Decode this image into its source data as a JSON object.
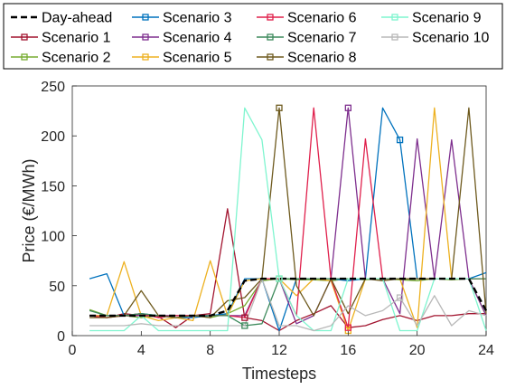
{
  "chart_data": {
    "type": "line",
    "xlabel": "Timesteps",
    "ylabel": "Price (€/MWh)",
    "xlim": [
      0,
      24
    ],
    "ylim": [
      0,
      250
    ],
    "xticks": [
      0,
      4,
      8,
      12,
      16,
      20,
      24
    ],
    "yticks": [
      0,
      50,
      100,
      150,
      200,
      250
    ],
    "grid": false,
    "legend": {
      "placement": "top",
      "columns": 4
    },
    "x": [
      1,
      2,
      3,
      4,
      5,
      6,
      7,
      8,
      9,
      10,
      11,
      12,
      13,
      14,
      15,
      16,
      17,
      18,
      19,
      20,
      21,
      22,
      23,
      24
    ],
    "series": [
      {
        "name": "Day-ahead",
        "color": "#000000",
        "dashed": true,
        "marker": false,
        "values": [
          20,
          20,
          20,
          20,
          20,
          20,
          20,
          20,
          25,
          55,
          57,
          57,
          57,
          57,
          57,
          57,
          57,
          57,
          57,
          57,
          57,
          57,
          57,
          25
        ]
      },
      {
        "name": "Scenario 1",
        "color": "#a2142f",
        "marker_index": 9,
        "values": [
          20,
          18,
          22,
          20,
          19,
          8,
          20,
          22,
          127,
          18,
          15,
          5,
          15,
          22,
          30,
          8,
          10,
          16,
          20,
          15,
          20,
          20,
          22,
          22
        ]
      },
      {
        "name": "Scenario 2",
        "color": "#77ac30",
        "marker_index": 11,
        "values": [
          26,
          20,
          20,
          18,
          20,
          20,
          20,
          18,
          22,
          30,
          55,
          57,
          56,
          56,
          55,
          57,
          56,
          57,
          56,
          55,
          57,
          56,
          57,
          20
        ]
      },
      {
        "name": "Scenario 3",
        "color": "#0072bd",
        "marker_index": 18,
        "values": [
          57,
          62,
          20,
          22,
          20,
          18,
          18,
          20,
          22,
          57,
          57,
          5,
          57,
          57,
          57,
          55,
          57,
          228,
          196,
          57,
          57,
          57,
          57,
          63
        ]
      },
      {
        "name": "Scenario 4",
        "color": "#7e2f8e",
        "marker_index": 15,
        "values": [
          20,
          20,
          20,
          20,
          20,
          20,
          20,
          20,
          20,
          20,
          57,
          57,
          12,
          20,
          57,
          228,
          57,
          57,
          22,
          197,
          57,
          196,
          57,
          20
        ]
      },
      {
        "name": "Scenario 5",
        "color": "#edb120",
        "marker_index": 15,
        "values": [
          20,
          20,
          74,
          20,
          15,
          18,
          15,
          75,
          20,
          55,
          57,
          57,
          40,
          57,
          55,
          5,
          57,
          57,
          57,
          8,
          228,
          57,
          57,
          57
        ]
      },
      {
        "name": "Scenario 6",
        "color": "#e0204c",
        "marker_index": 15,
        "values": [
          20,
          18,
          20,
          22,
          18,
          20,
          20,
          20,
          20,
          18,
          57,
          57,
          20,
          228,
          57,
          8,
          197,
          57,
          57,
          57,
          57,
          57,
          57,
          57
        ]
      },
      {
        "name": "Scenario 7",
        "color": "#3d8a5c",
        "marker_index": 9,
        "values": [
          25,
          20,
          20,
          22,
          20,
          18,
          20,
          20,
          20,
          10,
          12,
          57,
          57,
          57,
          57,
          57,
          57,
          57,
          57,
          57,
          57,
          57,
          57,
          57
        ]
      },
      {
        "name": "Scenario 8",
        "color": "#6e5a1e",
        "marker_index": 11,
        "values": [
          18,
          18,
          20,
          45,
          20,
          18,
          20,
          18,
          35,
          38,
          57,
          228,
          50,
          20,
          57,
          22,
          57,
          55,
          57,
          57,
          57,
          57,
          228,
          22
        ]
      },
      {
        "name": "Scenario 9",
        "color": "#7ff5cf",
        "marker_index": 11,
        "values": [
          5,
          5,
          5,
          20,
          5,
          5,
          5,
          5,
          5,
          228,
          196,
          57,
          20,
          5,
          5,
          57,
          57,
          57,
          5,
          5,
          57,
          57,
          57,
          5
        ]
      },
      {
        "name": "Scenario 10",
        "color": "#b8b8b8",
        "marker_index": 18,
        "values": [
          10,
          10,
          10,
          12,
          10,
          10,
          10,
          10,
          10,
          10,
          57,
          10,
          10,
          5,
          10,
          30,
          20,
          25,
          38,
          10,
          40,
          10,
          25,
          20
        ]
      }
    ]
  }
}
